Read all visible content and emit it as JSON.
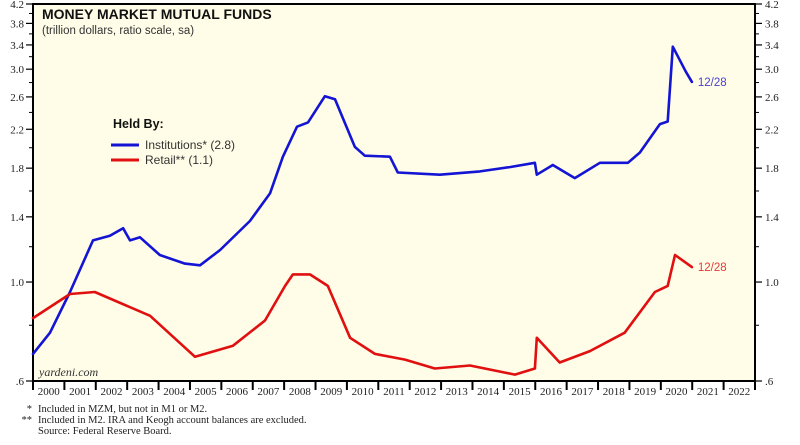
{
  "chart_data": {
    "type": "line",
    "title": "MONEY MARKET MUTUAL FUNDS",
    "subtitle": "(trillion dollars, ratio scale, sa)",
    "xlabel": "",
    "ylabel": "",
    "y_scale": "log",
    "ylim": [
      0.6,
      4.2
    ],
    "xlim": [
      2000,
      2023
    ],
    "y_ticks": [
      0.6,
      1.0,
      1.4,
      1.8,
      2.2,
      2.6,
      3.0,
      3.4,
      3.8,
      4.2
    ],
    "y_tick_labels": [
      ".6",
      "1.0",
      "1.4",
      "1.8",
      "2.2",
      "2.6",
      "3.0",
      "3.4",
      "3.8",
      "4.2"
    ],
    "y_minor_ticks": [
      0.8,
      1.2,
      1.6,
      2.0,
      2.4,
      2.8,
      3.2,
      3.6,
      4.0
    ],
    "x_tick_labels": [
      "2000",
      "2001",
      "2002",
      "2003",
      "2004",
      "2005",
      "2006",
      "2007",
      "2008",
      "2009",
      "2010",
      "2011",
      "2012",
      "2013",
      "2014",
      "2015",
      "2016",
      "2017",
      "2018",
      "2019",
      "2020",
      "2021",
      "2022"
    ],
    "grid": false,
    "legend_title": "Held By:",
    "legend_position": "top-left",
    "watermark": "yardeni.com",
    "series": [
      {
        "name": "Institutions* (2.8)",
        "color": "#1414d4",
        "end_label": "12/28",
        "points": [
          [
            2000.0,
            0.69
          ],
          [
            2000.54,
            0.77
          ],
          [
            2001.18,
            0.95
          ],
          [
            2001.91,
            1.24
          ],
          [
            2002.45,
            1.27
          ],
          [
            2002.87,
            1.32
          ],
          [
            2003.09,
            1.24
          ],
          [
            2003.41,
            1.26
          ],
          [
            2004.04,
            1.15
          ],
          [
            2004.84,
            1.1
          ],
          [
            2005.32,
            1.09
          ],
          [
            2005.96,
            1.18
          ],
          [
            2006.91,
            1.37
          ],
          [
            2007.55,
            1.58
          ],
          [
            2007.96,
            1.91
          ],
          [
            2008.41,
            2.23
          ],
          [
            2008.76,
            2.28
          ],
          [
            2009.3,
            2.61
          ],
          [
            2009.62,
            2.57
          ],
          [
            2010.25,
            2.01
          ],
          [
            2010.57,
            1.92
          ],
          [
            2011.37,
            1.91
          ],
          [
            2011.62,
            1.76
          ],
          [
            2012.96,
            1.74
          ],
          [
            2014.24,
            1.77
          ],
          [
            2015.19,
            1.81
          ],
          [
            2015.99,
            1.85
          ],
          [
            2016.05,
            1.74
          ],
          [
            2016.56,
            1.83
          ],
          [
            2017.26,
            1.71
          ],
          [
            2018.06,
            1.85
          ],
          [
            2018.95,
            1.85
          ],
          [
            2019.33,
            1.95
          ],
          [
            2019.97,
            2.26
          ],
          [
            2020.22,
            2.29
          ],
          [
            2020.38,
            3.37
          ],
          [
            2020.8,
            2.96
          ],
          [
            2020.99,
            2.81
          ]
        ]
      },
      {
        "name": "Retail** (1.1)",
        "color": "#e01010",
        "end_label": "12/28",
        "points": [
          [
            2000.0,
            0.83
          ],
          [
            2001.18,
            0.94
          ],
          [
            2001.97,
            0.95
          ],
          [
            2003.73,
            0.84
          ],
          [
            2005.16,
            0.68
          ],
          [
            2006.37,
            0.72
          ],
          [
            2007.39,
            0.82
          ],
          [
            2008.03,
            0.98
          ],
          [
            2008.28,
            1.04
          ],
          [
            2008.82,
            1.04
          ],
          [
            2009.39,
            0.98
          ],
          [
            2010.1,
            0.75
          ],
          [
            2010.89,
            0.69
          ],
          [
            2011.85,
            0.67
          ],
          [
            2012.8,
            0.64
          ],
          [
            2013.92,
            0.65
          ],
          [
            2015.35,
            0.62
          ],
          [
            2015.99,
            0.64
          ],
          [
            2016.05,
            0.75
          ],
          [
            2016.78,
            0.66
          ],
          [
            2017.74,
            0.7
          ],
          [
            2018.85,
            0.77
          ],
          [
            2019.81,
            0.95
          ],
          [
            2020.22,
            0.98
          ],
          [
            2020.45,
            1.15
          ],
          [
            2020.99,
            1.08
          ]
        ]
      }
    ]
  },
  "footnotes": [
    {
      "mark": "*",
      "text": "Included in MZM, but not in M1 or M2."
    },
    {
      "mark": "**",
      "text": "Included in M2. IRA and Keogh account balances are excluded."
    },
    {
      "mark": "",
      "text": "Source: Federal Reserve Board."
    }
  ]
}
